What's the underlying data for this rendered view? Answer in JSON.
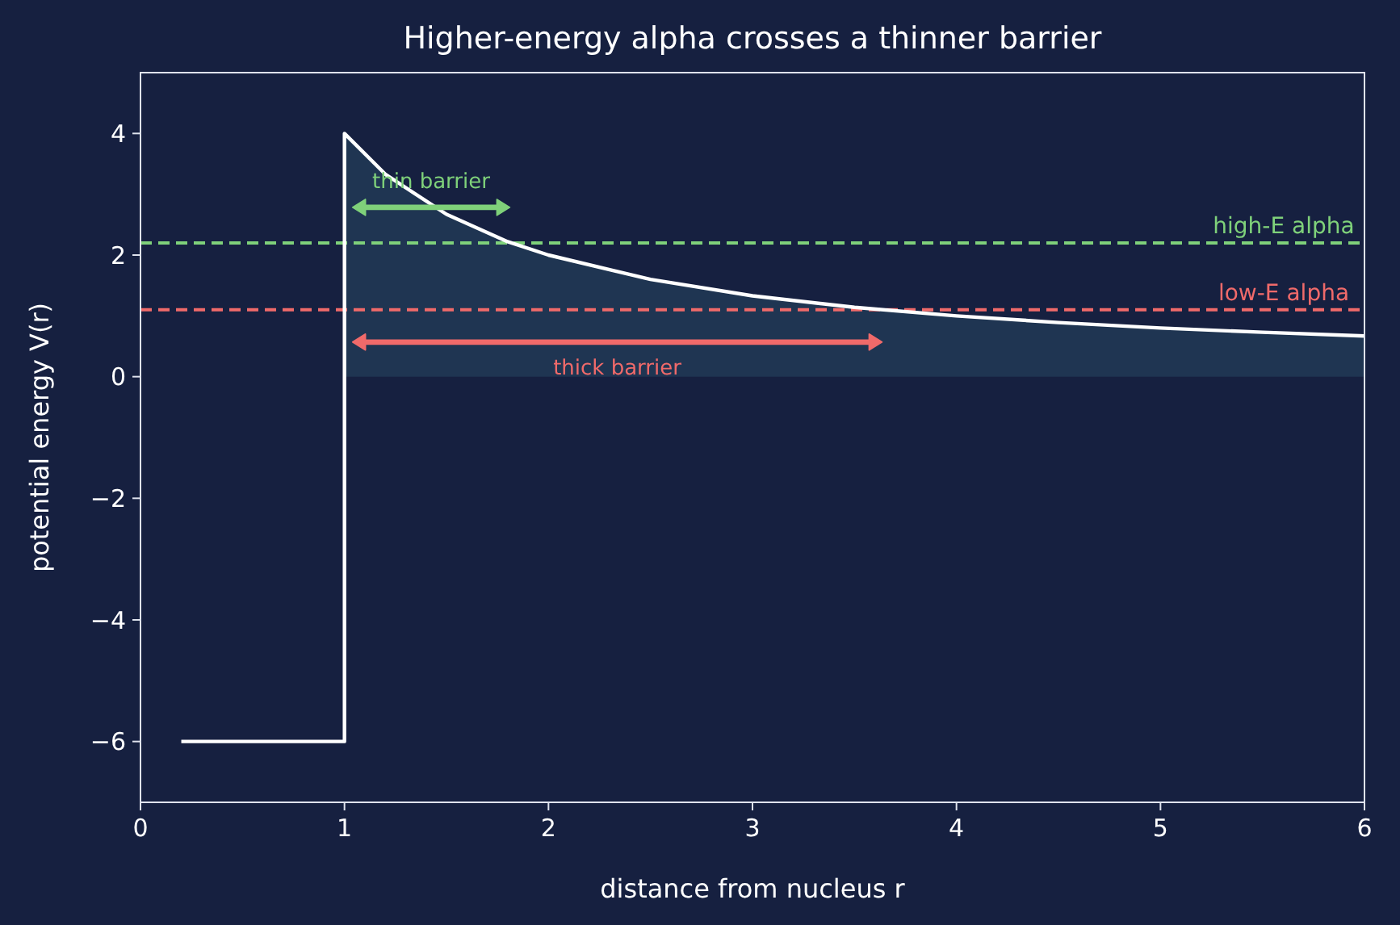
{
  "chart_data": {
    "type": "line",
    "title": "Higher-energy alpha crosses a thinner barrier",
    "xlabel": "distance from nucleus  r",
    "ylabel": "potential energy  V(r)",
    "series": [
      {
        "type": "area",
        "color": "#1f3552",
        "x": [
          1,
          1.2,
          1.5,
          1.8,
          2,
          2.5,
          3,
          3.5,
          4,
          4.5,
          5,
          5.5,
          6
        ],
        "values": [
          4,
          3.33,
          2.67,
          2.22,
          2,
          1.6,
          1.33,
          1.14,
          1,
          0.89,
          0.8,
          0.73,
          0.67
        ]
      },
      {
        "type": "line",
        "color": "#ffffff",
        "x": [
          0.2,
          1,
          1,
          1.2,
          1.5,
          1.8,
          2,
          2.5,
          3,
          3.5,
          4,
          4.5,
          5,
          5.5,
          6
        ],
        "values": [
          -6,
          -6,
          4,
          3.33,
          2.67,
          2.22,
          2,
          1.6,
          1.33,
          1.14,
          1,
          0.89,
          0.8,
          0.73,
          0.67
        ]
      }
    ],
    "ref_lines": [
      {
        "axis": "y",
        "value": 2.2,
        "label": "high-E alpha",
        "color": "#7fd17a",
        "line_style": "dashed"
      },
      {
        "axis": "y",
        "value": 1.1,
        "label": "low-E alpha",
        "color": "#f06a6a",
        "line_style": "dashed"
      }
    ],
    "annotations": [
      "thin barrier",
      "thick barrier"
    ],
    "xlim": [
      0,
      6
    ],
    "xticks": [
      0,
      1,
      2,
      3,
      4,
      5,
      6
    ],
    "ylim": [
      -7,
      5
    ],
    "yticks": [
      {
        "value": -6,
        "label": "−6"
      },
      {
        "value": -4,
        "label": "−4"
      },
      {
        "value": -2,
        "label": "−2"
      },
      0,
      2,
      4
    ],
    "grid": false
  }
}
